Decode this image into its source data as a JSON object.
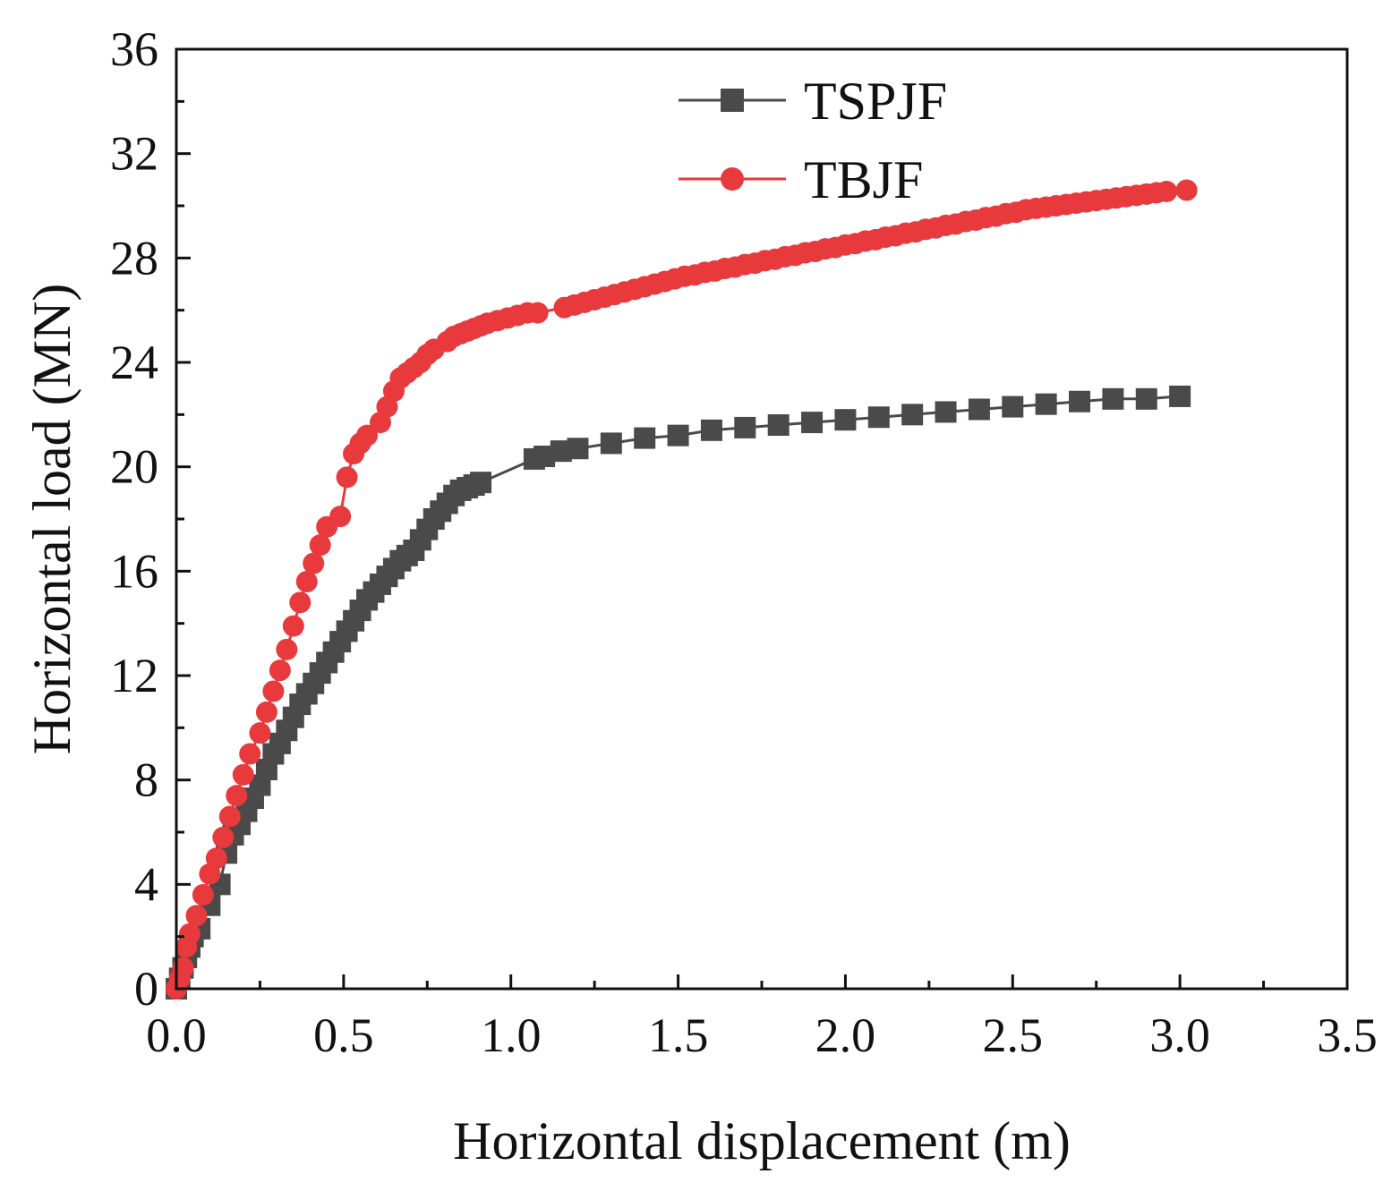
{
  "chart_data": {
    "type": "line",
    "title": "",
    "xlabel": "Horizontal displacement (m)",
    "ylabel": "Horizontal load (MN)",
    "xlim": [
      0,
      3.5
    ],
    "ylim": [
      0,
      36
    ],
    "xticks": [
      0.0,
      0.5,
      1.0,
      1.5,
      2.0,
      2.5,
      3.0,
      3.5
    ],
    "xtick_labels": [
      "0.0",
      "0.5",
      "1.0",
      "1.5",
      "2.0",
      "2.5",
      "3.0",
      "3.5"
    ],
    "yticks": [
      0,
      4,
      8,
      12,
      16,
      20,
      24,
      28,
      32,
      36
    ],
    "ytick_labels": [
      "0",
      "4",
      "8",
      "12",
      "16",
      "20",
      "24",
      "28",
      "32",
      "36"
    ],
    "grid": false,
    "legend_position": "top-center",
    "series": [
      {
        "name": "TSPJF",
        "marker": "square",
        "color": "#4a4a4a",
        "x": [
          0.0,
          0.01,
          0.02,
          0.03,
          0.04,
          0.05,
          0.07,
          0.1,
          0.13,
          0.15,
          0.17,
          0.19,
          0.21,
          0.23,
          0.25,
          0.27,
          0.29,
          0.31,
          0.33,
          0.35,
          0.37,
          0.39,
          0.41,
          0.43,
          0.45,
          0.47,
          0.49,
          0.51,
          0.53,
          0.55,
          0.57,
          0.59,
          0.61,
          0.63,
          0.65,
          0.67,
          0.69,
          0.71,
          0.73,
          0.75,
          0.77,
          0.79,
          0.81,
          0.83,
          0.85,
          0.87,
          0.89,
          0.91,
          1.07,
          1.1,
          1.15,
          1.2,
          1.3,
          1.4,
          1.5,
          1.6,
          1.7,
          1.8,
          1.9,
          2.0,
          2.1,
          2.2,
          2.3,
          2.4,
          2.5,
          2.6,
          2.7,
          2.8,
          2.9,
          3.0
        ],
        "y": [
          0.0,
          0.4,
          0.8,
          1.2,
          1.6,
          2.0,
          2.3,
          3.2,
          4.0,
          5.2,
          5.9,
          6.3,
          6.8,
          7.3,
          7.8,
          8.4,
          9.0,
          9.4,
          9.9,
          10.4,
          10.9,
          11.3,
          11.7,
          12.1,
          12.5,
          12.9,
          13.3,
          13.7,
          14.1,
          14.5,
          14.9,
          15.2,
          15.5,
          15.8,
          16.1,
          16.4,
          16.6,
          16.8,
          17.2,
          17.6,
          18.0,
          18.3,
          18.6,
          18.9,
          19.1,
          19.2,
          19.3,
          19.4,
          20.3,
          20.4,
          20.6,
          20.7,
          20.9,
          21.1,
          21.2,
          21.4,
          21.5,
          21.6,
          21.7,
          21.8,
          21.9,
          22.0,
          22.1,
          22.2,
          22.3,
          22.4,
          22.5,
          22.6,
          22.6,
          22.7
        ]
      },
      {
        "name": "TBJF",
        "marker": "circle",
        "color": "#e8393c",
        "x": [
          0.0,
          0.01,
          0.02,
          0.03,
          0.04,
          0.06,
          0.08,
          0.1,
          0.12,
          0.14,
          0.16,
          0.18,
          0.2,
          0.22,
          0.25,
          0.27,
          0.29,
          0.31,
          0.33,
          0.35,
          0.37,
          0.39,
          0.41,
          0.43,
          0.45,
          0.49,
          0.51,
          0.53,
          0.55,
          0.57,
          0.61,
          0.63,
          0.65,
          0.67,
          0.69,
          0.71,
          0.73,
          0.75,
          0.77,
          0.81,
          0.83,
          0.85,
          0.87,
          0.89,
          0.91,
          0.93,
          0.96,
          0.99,
          1.02,
          1.05,
          1.08,
          1.16,
          1.19,
          1.22,
          1.25,
          1.28,
          1.31,
          1.34,
          1.37,
          1.4,
          1.43,
          1.46,
          1.49,
          1.52,
          1.55,
          1.58,
          1.61,
          1.64,
          1.67,
          1.7,
          1.73,
          1.76,
          1.79,
          1.82,
          1.85,
          1.88,
          1.91,
          1.94,
          1.97,
          2.0,
          2.03,
          2.06,
          2.09,
          2.12,
          2.15,
          2.18,
          2.21,
          2.24,
          2.27,
          2.3,
          2.33,
          2.36,
          2.39,
          2.42,
          2.45,
          2.48,
          2.51,
          2.54,
          2.57,
          2.6,
          2.63,
          2.66,
          2.69,
          2.72,
          2.75,
          2.78,
          2.81,
          2.84,
          2.87,
          2.9,
          2.93,
          2.96,
          3.02
        ],
        "y": [
          0.0,
          0.4,
          0.8,
          1.6,
          2.1,
          2.8,
          3.6,
          4.4,
          5.0,
          5.8,
          6.6,
          7.4,
          8.2,
          9.0,
          9.8,
          10.6,
          11.4,
          12.2,
          13.0,
          13.9,
          14.8,
          15.6,
          16.3,
          17.0,
          17.7,
          18.1,
          19.6,
          20.5,
          20.9,
          21.2,
          21.7,
          22.3,
          22.9,
          23.4,
          23.6,
          23.8,
          24.0,
          24.3,
          24.5,
          24.8,
          25.0,
          25.1,
          25.2,
          25.3,
          25.4,
          25.5,
          25.6,
          25.7,
          25.8,
          25.9,
          25.9,
          26.1,
          26.2,
          26.3,
          26.4,
          26.5,
          26.6,
          26.7,
          26.8,
          26.9,
          27.0,
          27.1,
          27.2,
          27.3,
          27.35,
          27.45,
          27.5,
          27.6,
          27.65,
          27.75,
          27.8,
          27.9,
          27.95,
          28.05,
          28.1,
          28.2,
          28.25,
          28.35,
          28.4,
          28.5,
          28.55,
          28.65,
          28.7,
          28.8,
          28.85,
          28.95,
          29.0,
          29.1,
          29.15,
          29.25,
          29.3,
          29.4,
          29.45,
          29.55,
          29.6,
          29.7,
          29.75,
          29.85,
          29.9,
          29.95,
          30.0,
          30.05,
          30.1,
          30.15,
          30.2,
          30.25,
          30.3,
          30.35,
          30.4,
          30.45,
          30.5,
          30.55,
          30.6
        ]
      }
    ]
  }
}
